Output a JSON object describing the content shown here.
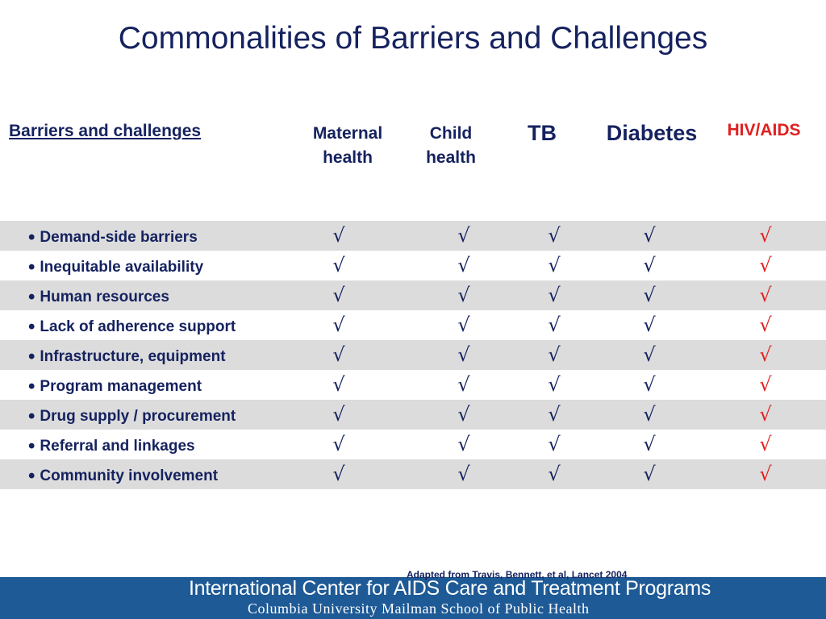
{
  "title": "Commonalities of Barriers and Challenges",
  "columns": {
    "barriers": "Barriers and challenges",
    "maternal_line1": "Maternal",
    "maternal_line2": "health",
    "child_line1": "Child",
    "child_line2": "health",
    "tb": "TB",
    "diabetes": "Diabetes",
    "hiv": "HIV/AIDS"
  },
  "check_glyph": "√",
  "bullet_glyph": "•",
  "rows": [
    {
      "label": "Demand-side barriers"
    },
    {
      "label": "Inequitable availability"
    },
    {
      "label": "Human resources"
    },
    {
      "label": "Lack of adherence support"
    },
    {
      "label": "Infrastructure, equipment"
    },
    {
      "label": "Program management"
    },
    {
      "label": "Drug supply / procurement"
    },
    {
      "label": "Referral and linkages"
    },
    {
      "label": "Community involvement"
    }
  ],
  "citation": "Adapted from Travis, Bennett, et al, Lancet 2004",
  "footer": {
    "line1": "International Center for AIDS Care and Treatment Programs",
    "line2": "Columbia University Mailman School of Public Health"
  },
  "colors": {
    "navy": "#15225f",
    "hiv_red": "#e02020",
    "row_shade": "#dcdcdc",
    "footer_blue": "#1e5a96"
  }
}
